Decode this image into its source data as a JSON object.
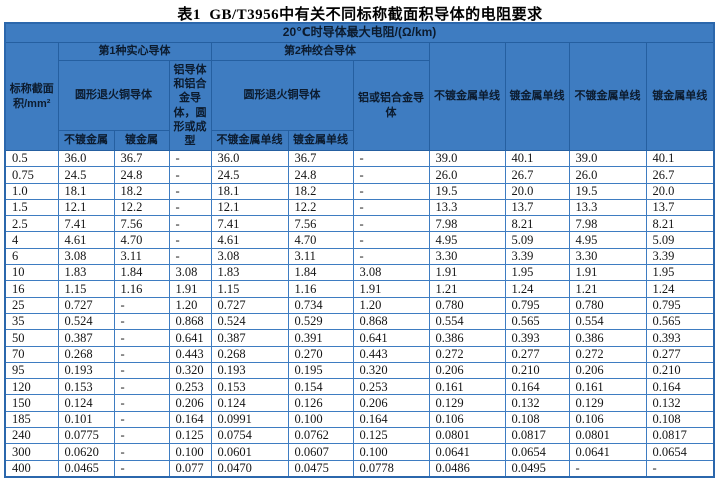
{
  "title": "表1  GB/T3956中有关不同标称截面积导体的电阻要求",
  "colors": {
    "header_bg": "#3e7cc1",
    "header_grid_line": "#255fa0",
    "data_grid_line": "#3e7cc1",
    "outer_border": "#2b67ac",
    "header_text": "#0c1b2e",
    "data_text": "#151515",
    "page_bg": "#ffffff"
  },
  "header": {
    "resistance_title": "20℃时导体最大电阻/(Ω/km)",
    "area_label": "标称截面积/mm²",
    "type1_label": "第1种实心导体",
    "type2_label": "第2种绞合导体",
    "copper1": "圆形退火铜导体",
    "alu1": "铝导体和铝合金导体，圆形或成型",
    "copper2": "圆形退火铜导体",
    "alu2": "铝或铝合金导体",
    "sub_unplated": "不镀金属",
    "sub_plated": "镀金属",
    "sub_unplated_wire": "不镀金属单线",
    "sub_plated_wire": "镀金属单线",
    "right_cols": [
      "不镀金属单线",
      "镀金属单线",
      "不镀金属单线",
      "镀金属单线"
    ]
  },
  "rows": [
    {
      "area": "0.5",
      "values": [
        "36.0",
        "36.7",
        "-",
        "36.0",
        "36.7",
        "-",
        "39.0",
        "40.1",
        "39.0",
        "40.1"
      ]
    },
    {
      "area": "0.75",
      "values": [
        "24.5",
        "24.8",
        "-",
        "24.5",
        "24.8",
        "-",
        "26.0",
        "26.7",
        "26.0",
        "26.7"
      ]
    },
    {
      "area": "1.0",
      "values": [
        "18.1",
        "18.2",
        "-",
        "18.1",
        "18.2",
        "-",
        "19.5",
        "20.0",
        "19.5",
        "20.0"
      ]
    },
    {
      "area": "1.5",
      "values": [
        "12.1",
        "12.2",
        "-",
        "12.1",
        "12.2",
        "-",
        "13.3",
        "13.7",
        "13.3",
        "13.7"
      ]
    },
    {
      "area": "2.5",
      "values": [
        "7.41",
        "7.56",
        "-",
        "7.41",
        "7.56",
        "-",
        "7.98",
        "8.21",
        "7.98",
        "8.21"
      ]
    },
    {
      "area": "4",
      "values": [
        "4.61",
        "4.70",
        "-",
        "4.61",
        "4.70",
        "-",
        "4.95",
        "5.09",
        "4.95",
        "5.09"
      ]
    },
    {
      "area": "6",
      "values": [
        "3.08",
        "3.11",
        "-",
        "3.08",
        "3.11",
        "-",
        "3.30",
        "3.39",
        "3.30",
        "3.39"
      ]
    },
    {
      "area": "10",
      "values": [
        "1.83",
        "1.84",
        "3.08",
        "1.83",
        "1.84",
        "3.08",
        "1.91",
        "1.95",
        "1.91",
        "1.95"
      ]
    },
    {
      "area": "16",
      "values": [
        "1.15",
        "1.16",
        "1.91",
        "1.15",
        "1.16",
        "1.91",
        "1.21",
        "1.24",
        "1.21",
        "1.24"
      ]
    },
    {
      "area": "25",
      "values": [
        "0.727",
        "-",
        "1.20",
        "0.727",
        "0.734",
        "1.20",
        "0.780",
        "0.795",
        "0.780",
        "0.795"
      ]
    },
    {
      "area": "35",
      "values": [
        "0.524",
        "-",
        "0.868",
        "0.524",
        "0.529",
        "0.868",
        "0.554",
        "0.565",
        "0.554",
        "0.565"
      ]
    },
    {
      "area": "50",
      "values": [
        "0.387",
        "-",
        "0.641",
        "0.387",
        "0.391",
        "0.641",
        "0.386",
        "0.393",
        "0.386",
        "0.393"
      ]
    },
    {
      "area": "70",
      "values": [
        "0.268",
        "-",
        "0.443",
        "0.268",
        "0.270",
        "0.443",
        "0.272",
        "0.277",
        "0.272",
        "0.277"
      ]
    },
    {
      "area": "95",
      "values": [
        "0.193",
        "-",
        "0.320",
        "0.193",
        "0.195",
        "0.320",
        "0.206",
        "0.210",
        "0.206",
        "0.210"
      ]
    },
    {
      "area": "120",
      "values": [
        "0.153",
        "-",
        "0.253",
        "0.153",
        "0.154",
        "0.253",
        "0.161",
        "0.164",
        "0.161",
        "0.164"
      ]
    },
    {
      "area": "150",
      "values": [
        "0.124",
        "-",
        "0.206",
        "0.124",
        "0.126",
        "0.206",
        "0.129",
        "0.132",
        "0.129",
        "0.132"
      ]
    },
    {
      "area": "185",
      "values": [
        "0.101",
        "-",
        "0.164",
        "0.0991",
        "0.100",
        "0.164",
        "0.106",
        "0.108",
        "0.106",
        "0.108"
      ]
    },
    {
      "area": "240",
      "values": [
        "0.0775",
        "-",
        "0.125",
        "0.0754",
        "0.0762",
        "0.125",
        "0.0801",
        "0.0817",
        "0.0801",
        "0.0817"
      ]
    },
    {
      "area": "300",
      "values": [
        "0.0620",
        "-",
        "0.100",
        "0.0601",
        "0.0607",
        "0.100",
        "0.0641",
        "0.0654",
        "0.0641",
        "0.0654"
      ]
    },
    {
      "area": "400",
      "values": [
        "0.0465",
        "-",
        "0.077",
        "0.0470",
        "0.0475",
        "0.0778",
        "0.0486",
        "0.0495",
        "-",
        "-"
      ]
    }
  ]
}
